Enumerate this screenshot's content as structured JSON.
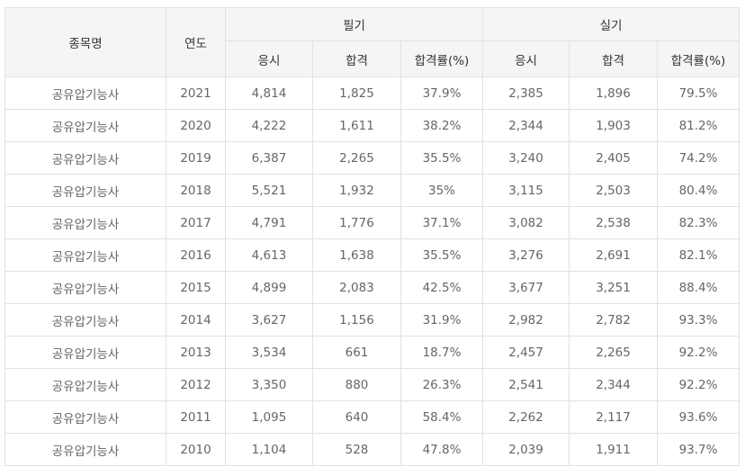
{
  "header": {
    "item_name": "종목명",
    "year": "연도",
    "written": "필기",
    "practical": "실기",
    "applicants": "응시",
    "passed": "합격",
    "pass_rate": "합격률(%)"
  },
  "rows": [
    {
      "name": "공유압기능사",
      "year": "2021",
      "w_app": "4,814",
      "w_pass": "1,825",
      "w_rate": "37.9%",
      "p_app": "2,385",
      "p_pass": "1,896",
      "p_rate": "79.5%"
    },
    {
      "name": "공유압기능사",
      "year": "2020",
      "w_app": "4,222",
      "w_pass": "1,611",
      "w_rate": "38.2%",
      "p_app": "2,344",
      "p_pass": "1,903",
      "p_rate": "81.2%"
    },
    {
      "name": "공유압기능사",
      "year": "2019",
      "w_app": "6,387",
      "w_pass": "2,265",
      "w_rate": "35.5%",
      "p_app": "3,240",
      "p_pass": "2,405",
      "p_rate": "74.2%"
    },
    {
      "name": "공유압기능사",
      "year": "2018",
      "w_app": "5,521",
      "w_pass": "1,932",
      "w_rate": "35%",
      "p_app": "3,115",
      "p_pass": "2,503",
      "p_rate": "80.4%"
    },
    {
      "name": "공유압기능사",
      "year": "2017",
      "w_app": "4,791",
      "w_pass": "1,776",
      "w_rate": "37.1%",
      "p_app": "3,082",
      "p_pass": "2,538",
      "p_rate": "82.3%"
    },
    {
      "name": "공유압기능사",
      "year": "2016",
      "w_app": "4,613",
      "w_pass": "1,638",
      "w_rate": "35.5%",
      "p_app": "3,276",
      "p_pass": "2,691",
      "p_rate": "82.1%"
    },
    {
      "name": "공유압기능사",
      "year": "2015",
      "w_app": "4,899",
      "w_pass": "2,083",
      "w_rate": "42.5%",
      "p_app": "3,677",
      "p_pass": "3,251",
      "p_rate": "88.4%"
    },
    {
      "name": "공유압기능사",
      "year": "2014",
      "w_app": "3,627",
      "w_pass": "1,156",
      "w_rate": "31.9%",
      "p_app": "2,982",
      "p_pass": "2,782",
      "p_rate": "93.3%"
    },
    {
      "name": "공유압기능사",
      "year": "2013",
      "w_app": "3,534",
      "w_pass": "661",
      "w_rate": "18.7%",
      "p_app": "2,457",
      "p_pass": "2,265",
      "p_rate": "92.2%"
    },
    {
      "name": "공유압기능사",
      "year": "2012",
      "w_app": "3,350",
      "w_pass": "880",
      "w_rate": "26.3%",
      "p_app": "2,541",
      "p_pass": "2,344",
      "p_rate": "92.2%"
    },
    {
      "name": "공유압기능사",
      "year": "2011",
      "w_app": "1,095",
      "w_pass": "640",
      "w_rate": "58.4%",
      "p_app": "2,262",
      "p_pass": "2,117",
      "p_rate": "93.6%"
    },
    {
      "name": "공유압기능사",
      "year": "2010",
      "w_app": "1,104",
      "w_pass": "528",
      "w_rate": "47.8%",
      "p_app": "2,039",
      "p_pass": "1,911",
      "p_rate": "93.7%"
    }
  ]
}
